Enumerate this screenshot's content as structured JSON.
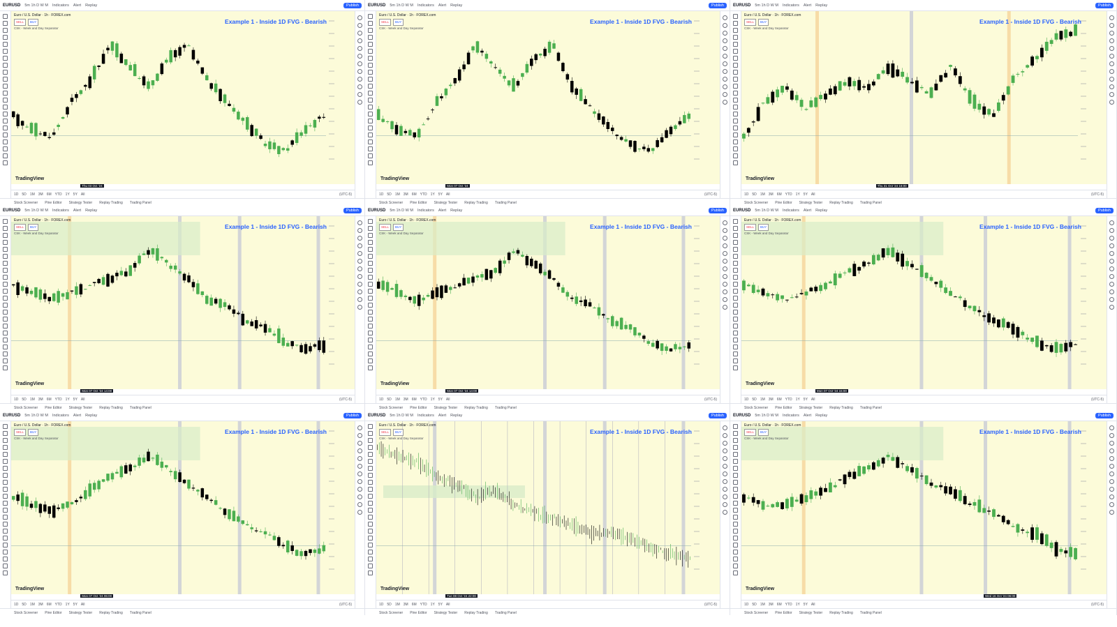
{
  "app": {
    "symbol": "EURUSD",
    "timeframes_label": "5m  1h  D  W  M",
    "toolbar": [
      "Indicators",
      "Alert",
      "Replay"
    ],
    "publish_label": "Publish",
    "legend_line1": "Euro / U.S. Dollar · 1h · FOREX.com",
    "sell_label": "SELL",
    "buy_label": "BUY",
    "indicator_line": "CSK - Week and Day Separator",
    "chart_title": "Example 1 - Inside 1D FVG - Bearish",
    "brand": "TradingView",
    "ranges": [
      "1D",
      "5D",
      "1M",
      "3M",
      "6M",
      "YTD",
      "1Y",
      "5Y",
      "All"
    ],
    "bottom_tabs": [
      "Stock Screener",
      "Pine Editor",
      "Strategy Tester",
      "Replay Trading",
      "Trading Panel"
    ],
    "timezone": "(UTC-5)"
  },
  "panels": [
    {
      "date_label": "Thu 03 Oct '24"
    },
    {
      "date_label": "Mon 07 Oct '24"
    },
    {
      "date_label": "Thu 31 Oct '24 16:00"
    },
    {
      "date_label": "Mon 07 Oct '24 14:00"
    },
    {
      "date_label": "Mon 07 Oct '24 14:00"
    },
    {
      "date_label": "Mon 07 Oct '24 15:00"
    },
    {
      "date_label": "Mon 07 Oct '24 06:00"
    },
    {
      "date_label": "Tue 08 Oct '24 22:00"
    },
    {
      "date_label": "Wed 16 Oct '24 06:00"
    }
  ],
  "colors": {
    "chart_bg": "#fcfbd9",
    "bull": "#4caf50",
    "bear": "#000000",
    "title": "#2962ff",
    "fvg_zone": "#d8ecc8",
    "session_grey": "#c8ccd6",
    "session_orange": "#f5d49a"
  }
}
